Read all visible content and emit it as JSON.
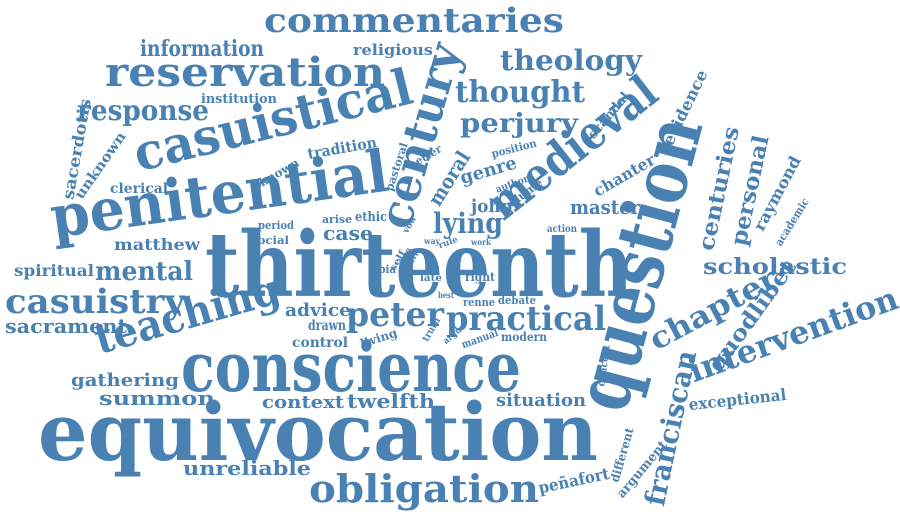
{
  "color": "#4a81b3",
  "words": [
    {
      "id": "thirteenth",
      "text": "thirteenth"
    },
    {
      "id": "equivocation",
      "text": "equivocation"
    },
    {
      "id": "conscience",
      "text": "conscience"
    },
    {
      "id": "question",
      "text": "question"
    },
    {
      "id": "penitential",
      "text": "penitential"
    },
    {
      "id": "casuistical",
      "text": "casuistical"
    },
    {
      "id": "century",
      "text": "century"
    },
    {
      "id": "medieval",
      "text": "medieval"
    },
    {
      "id": "reservation",
      "text": "reservation"
    },
    {
      "id": "commentaries",
      "text": "commentaries"
    },
    {
      "id": "obligation",
      "text": "obligation"
    },
    {
      "id": "teaching",
      "text": "teaching"
    },
    {
      "id": "practical",
      "text": "practical"
    },
    {
      "id": "peter",
      "text": "peter"
    },
    {
      "id": "intervention",
      "text": "intervention"
    },
    {
      "id": "casuistry",
      "text": "casuistry"
    },
    {
      "id": "chapter",
      "text": "chapter"
    },
    {
      "id": "franciscan",
      "text": "franciscan"
    },
    {
      "id": "thought",
      "text": "thought"
    },
    {
      "id": "theology",
      "text": "theology"
    },
    {
      "id": "response",
      "text": "response"
    },
    {
      "id": "perjury",
      "text": "perjury"
    },
    {
      "id": "mental",
      "text": "mental"
    },
    {
      "id": "lying",
      "text": "lying"
    },
    {
      "id": "information",
      "text": "information"
    },
    {
      "id": "scholastic",
      "text": "scholastic"
    },
    {
      "id": "quodlibet",
      "text": "quodlibet"
    },
    {
      "id": "centuries",
      "text": "centuries"
    },
    {
      "id": "personal",
      "text": "personal"
    },
    {
      "id": "sacrament",
      "text": "sacrament"
    },
    {
      "id": "summon",
      "text": "summon"
    },
    {
      "id": "context",
      "text": "context"
    },
    {
      "id": "twelfth",
      "text": "twelfth"
    },
    {
      "id": "gathering",
      "text": "gathering"
    },
    {
      "id": "situation",
      "text": "situation"
    },
    {
      "id": "unreliable",
      "text": "unreliable"
    },
    {
      "id": "penafort",
      "text": "peñafort"
    },
    {
      "id": "exceptional",
      "text": "exceptional"
    },
    {
      "id": "raymond",
      "text": "raymond"
    },
    {
      "id": "master",
      "text": "master"
    },
    {
      "id": "moral",
      "text": "moral"
    },
    {
      "id": "genre",
      "text": "genre"
    },
    {
      "id": "john",
      "text": "john"
    },
    {
      "id": "case",
      "text": "case"
    },
    {
      "id": "advice",
      "text": "advice"
    },
    {
      "id": "control",
      "text": "control"
    },
    {
      "id": "drawn",
      "text": "drawn"
    },
    {
      "id": "matthew",
      "text": "matthew"
    },
    {
      "id": "spiritual",
      "text": "spiritual"
    },
    {
      "id": "clerical",
      "text": "clerical"
    },
    {
      "id": "unknown",
      "text": "unknown"
    },
    {
      "id": "sacerdotis",
      "text": "sacerdotis"
    },
    {
      "id": "institution",
      "text": "institution"
    },
    {
      "id": "religious",
      "text": "religious"
    },
    {
      "id": "tradition",
      "text": "tradition"
    },
    {
      "id": "known",
      "text": "known"
    },
    {
      "id": "pastoral",
      "text": "pastoral"
    },
    {
      "id": "better",
      "text": "better"
    },
    {
      "id": "position",
      "text": "position"
    },
    {
      "id": "author",
      "text": "author"
    },
    {
      "id": "volume",
      "text": "volume"
    },
    {
      "id": "scandal",
      "text": "scandal"
    },
    {
      "id": "evidence",
      "text": "evidence"
    },
    {
      "id": "chanter",
      "text": "chanter"
    },
    {
      "id": "academic",
      "text": "academic"
    },
    {
      "id": "ethic",
      "text": "ethic"
    },
    {
      "id": "arise",
      "text": "arise"
    },
    {
      "id": "period",
      "text": "period"
    },
    {
      "id": "social",
      "text": "social"
    },
    {
      "id": "labia",
      "text": "labia"
    },
    {
      "id": "self",
      "text": "self"
    },
    {
      "id": "late",
      "text": "late"
    },
    {
      "id": "right",
      "text": "right"
    },
    {
      "id": "rule",
      "text": "rule"
    },
    {
      "id": "way",
      "text": "way"
    },
    {
      "id": "work",
      "text": "work"
    },
    {
      "id": "action",
      "text": "action"
    },
    {
      "id": "vow",
      "text": "vow"
    },
    {
      "id": "best",
      "text": "best"
    },
    {
      "id": "renne",
      "text": "renne"
    },
    {
      "id": "debate",
      "text": "debate"
    },
    {
      "id": "living",
      "text": "living"
    },
    {
      "id": "truth",
      "text": "truth"
    },
    {
      "id": "argue",
      "text": "argue"
    },
    {
      "id": "manual",
      "text": "manual"
    },
    {
      "id": "modern",
      "text": "modern"
    },
    {
      "id": "concept",
      "text": "concept"
    },
    {
      "id": "different",
      "text": "different"
    },
    {
      "id": "argument",
      "text": "argument"
    },
    {
      "id": "olivi",
      "text": "olivi"
    },
    {
      "id": "jean",
      "text": "jean"
    }
  ]
}
